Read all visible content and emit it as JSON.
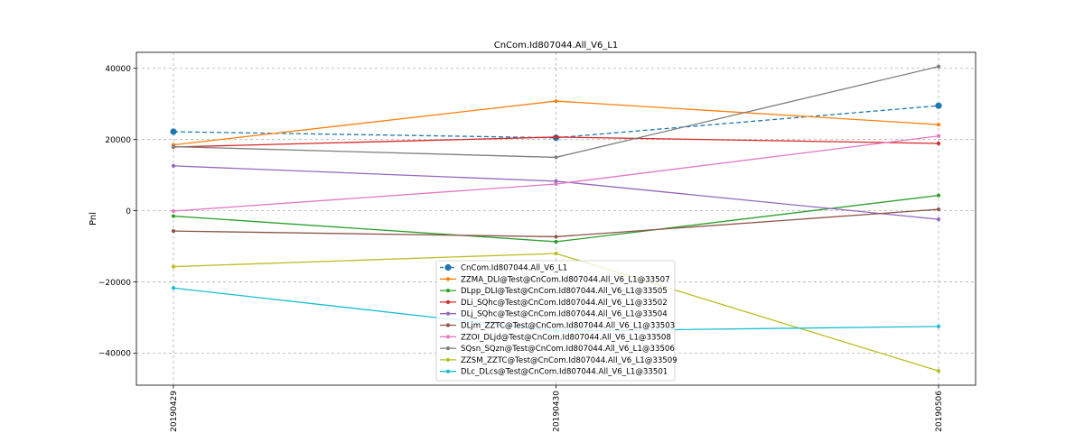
{
  "chart_data": {
    "type": "line",
    "title": "CnCom.Id807044.All_V6_L1",
    "xlabel": "",
    "ylabel": "Pnl",
    "categories": [
      "20190429",
      "20190430",
      "20190506"
    ],
    "ylim": [
      -49000,
      44500
    ],
    "yticks": [
      -40000,
      -20000,
      0,
      20000,
      40000
    ],
    "ytick_labels": [
      "−40000",
      "−20000",
      "0",
      "20000",
      "40000"
    ],
    "grid": true,
    "legend_position": "bottom-center",
    "series": [
      {
        "name": "CnCom.Id807044.All_V6_L1",
        "color": "#1f77b4",
        "dashed": true,
        "marker_size": "large",
        "values": [
          22200,
          20500,
          29500
        ]
      },
      {
        "name": "ZZMA_DLI@Test@CnCom.Id807044.All_V6_L1@33507",
        "color": "#ff7f0e",
        "dashed": false,
        "marker_size": "small",
        "values": [
          18500,
          30800,
          24200
        ]
      },
      {
        "name": "DLpp_DLI@Test@CnCom.Id807044.All_V6_L1@33505",
        "color": "#2ca02c",
        "dashed": false,
        "marker_size": "small",
        "values": [
          -1500,
          -8700,
          4300
        ]
      },
      {
        "name": "DLi_SQhc@Test@CnCom.Id807044.All_V6_L1@33502",
        "color": "#d62728",
        "dashed": false,
        "marker_size": "small",
        "values": [
          17900,
          20700,
          18900
        ]
      },
      {
        "name": "DLj_SQhc@Test@CnCom.Id807044.All_V6_L1@33504",
        "color": "#9467bd",
        "dashed": false,
        "marker_size": "small",
        "values": [
          12600,
          8300,
          -2400
        ]
      },
      {
        "name": "DLjm_ZZTC@Test@CnCom.Id807044.All_V6_L1@33503",
        "color": "#8c564b",
        "dashed": false,
        "marker_size": "small",
        "values": [
          -5700,
          -7300,
          400
        ]
      },
      {
        "name": "ZZOI_DLjd@Test@CnCom.Id807044.All_V6_L1@33508",
        "color": "#e377c2",
        "dashed": false,
        "marker_size": "small",
        "values": [
          -100,
          7500,
          21000
        ]
      },
      {
        "name": "SQsn_SQzn@Test@CnCom.Id807044.All_V6_L1@33506",
        "color": "#7f7f7f",
        "dashed": false,
        "marker_size": "small",
        "values": [
          18000,
          15000,
          40500
        ]
      },
      {
        "name": "ZZSM_ZZTC@Test@CnCom.Id807044.All_V6_L1@33509",
        "color": "#bcbd22",
        "dashed": false,
        "marker_size": "small",
        "values": [
          -15700,
          -12000,
          -45000
        ]
      },
      {
        "name": "DLc_DLcs@Test@CnCom.Id807044.All_V6_L1@33501",
        "color": "#17becf",
        "dashed": false,
        "marker_size": "small",
        "values": [
          -21700,
          -33800,
          -32500
        ]
      }
    ]
  }
}
